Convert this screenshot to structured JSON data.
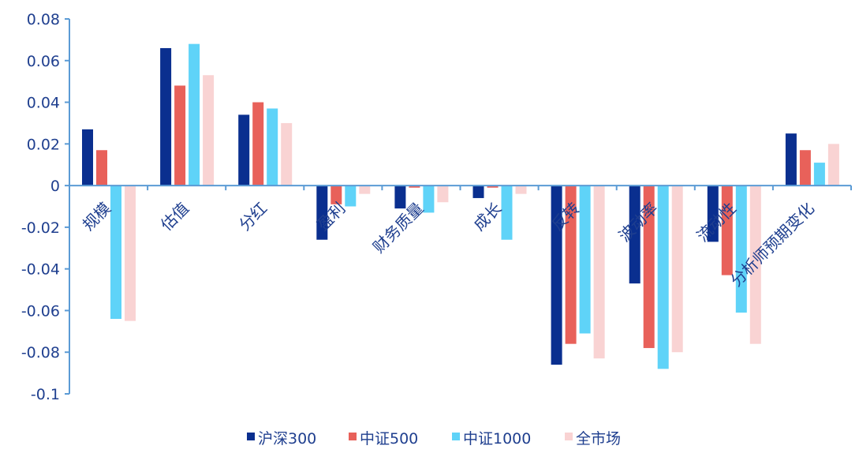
{
  "chart_data": {
    "type": "bar",
    "categories": [
      "规模",
      "估值",
      "分红",
      "盈利",
      "财务质量",
      "成长",
      "反转",
      "波动率",
      "流动性",
      "分析师预期变化"
    ],
    "series": [
      {
        "name": "沪深300",
        "color": "#0a2f8f",
        "values": [
          0.027,
          0.066,
          0.034,
          -0.026,
          -0.011,
          -0.006,
          -0.086,
          -0.047,
          -0.027,
          0.025
        ]
      },
      {
        "name": "中证500",
        "color": "#e8615a",
        "values": [
          0.017,
          0.048,
          0.04,
          -0.009,
          -0.001,
          -0.001,
          -0.076,
          -0.078,
          -0.043,
          0.017
        ]
      },
      {
        "name": "中证1000",
        "color": "#5fd3f8",
        "values": [
          -0.064,
          0.068,
          0.037,
          -0.01,
          -0.013,
          -0.026,
          -0.071,
          -0.088,
          -0.061,
          0.011
        ]
      },
      {
        "name": "全市场",
        "color": "#f9d3d3",
        "values": [
          -0.065,
          0.053,
          0.03,
          -0.004,
          -0.008,
          -0.004,
          -0.083,
          -0.08,
          -0.076,
          0.02
        ]
      }
    ],
    "ylim": [
      -0.1,
      0.08
    ],
    "yticks": [
      0.08,
      0.06,
      0.04,
      0.02,
      0,
      -0.02,
      -0.04,
      -0.06,
      -0.08,
      -0.1
    ],
    "ytick_labels": [
      "0.08",
      "0.06",
      "0.04",
      "0.02",
      "0",
      "-0.02",
      "-0.04",
      "-0.06",
      "-0.08",
      "-0.1"
    ],
    "legend_position": "bottom",
    "grid": false,
    "title": "",
    "xlabel": "",
    "ylabel": ""
  }
}
